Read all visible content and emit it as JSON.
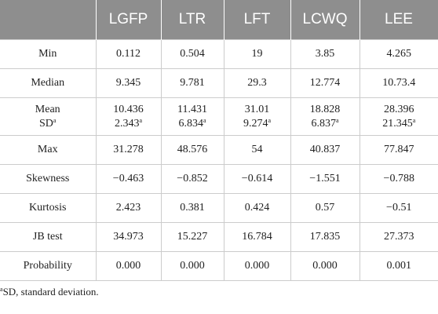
{
  "table": {
    "header": [
      "LGFP",
      "LTR",
      "LFT",
      "LCWQ",
      "LEE"
    ],
    "rows": [
      {
        "label": "Min",
        "cells": [
          "0.112",
          "0.504",
          "19",
          "3.85",
          "4.265"
        ]
      },
      {
        "label": "Median",
        "cells": [
          "9.345",
          "9.781",
          "29.3",
          "12.774",
          "10.73.4"
        ]
      },
      {
        "label": "Mean",
        "cells": [
          "10.436",
          "11.431",
          "31.01",
          "18.828",
          "28.396"
        ],
        "sub": {
          "label": {
            "text": "SD",
            "sup": "a"
          },
          "cells": [
            {
              "text": "2.343",
              "sup": "a"
            },
            {
              "text": "6.834",
              "sup": "a"
            },
            {
              "text": "9.274",
              "sup": "a"
            },
            {
              "text": "6.837",
              "sup": "a"
            },
            {
              "text": "21.345",
              "sup": "a"
            }
          ]
        }
      },
      {
        "label": "Max",
        "cells": [
          "31.278",
          "48.576",
          "54",
          "40.837",
          "77.847"
        ]
      },
      {
        "label": "Skewness",
        "cells": [
          "−0.463",
          "−0.852",
          "−0.614",
          "−1.551",
          "−0.788"
        ]
      },
      {
        "label": "Kurtosis",
        "cells": [
          "2.423",
          "0.381",
          "0.424",
          "0.57",
          "−0.51"
        ]
      },
      {
        "label": "JB test",
        "cells": [
          "34.973",
          "15.227",
          "16.784",
          "17.835",
          "27.373"
        ]
      },
      {
        "label": "Probability",
        "cells": [
          "0.000",
          "0.000",
          "0.000",
          "0.000",
          "0.001"
        ]
      }
    ]
  },
  "footnote": {
    "sup": "a",
    "text": "SD, standard deviation."
  }
}
